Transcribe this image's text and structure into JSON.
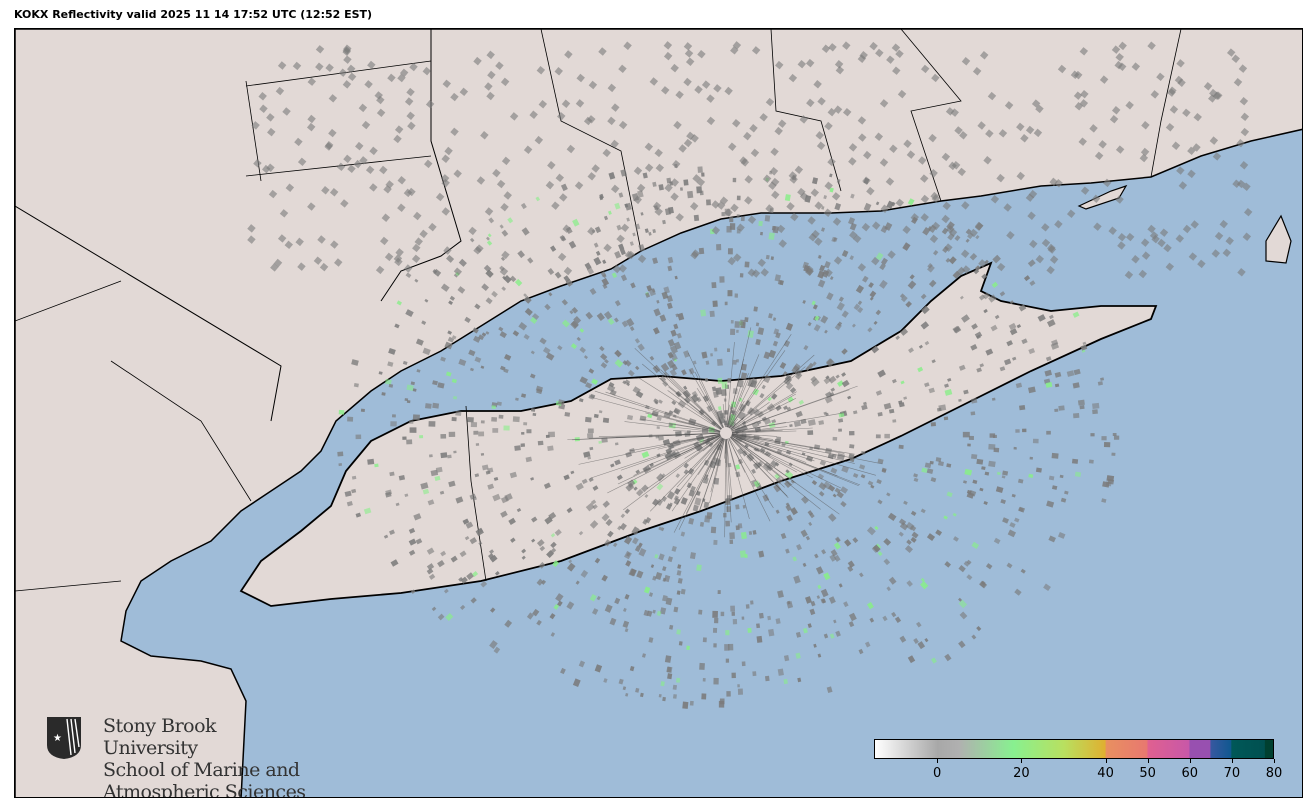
{
  "title": "KOKX Reflectivity valid 2025 11 14 17:52 UTC (12:52 EST)",
  "map": {
    "colors": {
      "ocean": "#9fbcd8",
      "land": "#e2d9d6",
      "border": "#000000",
      "radar_echo": "#808080"
    },
    "radar_site": "KOKX"
  },
  "logo": {
    "line1": "Stony Brook University",
    "line2": "School of Marine and",
    "line3": "Atmospheric Sciences"
  },
  "colorbar": {
    "range": [
      -15,
      80
    ],
    "ticks": [
      {
        "value": 0,
        "label": "0"
      },
      {
        "value": 20,
        "label": "20"
      },
      {
        "value": 40,
        "label": "40"
      },
      {
        "value": 50,
        "label": "50"
      },
      {
        "value": 60,
        "label": "60"
      },
      {
        "value": 70,
        "label": "70"
      },
      {
        "value": 80,
        "label": "80"
      }
    ],
    "stops": [
      {
        "value": -15,
        "color": "#ffffff"
      },
      {
        "value": 0,
        "color": "#a8a8a8"
      },
      {
        "value": 5,
        "color": "#b0b0b0"
      },
      {
        "value": 18,
        "color": "#88f090"
      },
      {
        "value": 30,
        "color": "#b8e060"
      },
      {
        "value": 40,
        "color": "#e0b030"
      },
      {
        "value": 40.1,
        "color": "#e89060"
      },
      {
        "value": 50,
        "color": "#e87870"
      },
      {
        "value": 50.1,
        "color": "#e06090"
      },
      {
        "value": 60,
        "color": "#c858a8"
      },
      {
        "value": 60.1,
        "color": "#9850b0"
      },
      {
        "value": 65,
        "color": "#9850b0"
      },
      {
        "value": 65.1,
        "color": "#3858a0"
      },
      {
        "value": 70,
        "color": "#105890"
      },
      {
        "value": 70.1,
        "color": "#005858"
      },
      {
        "value": 78,
        "color": "#005050"
      },
      {
        "value": 78.1,
        "color": "#004030"
      },
      {
        "value": 80,
        "color": "#004030"
      }
    ]
  }
}
